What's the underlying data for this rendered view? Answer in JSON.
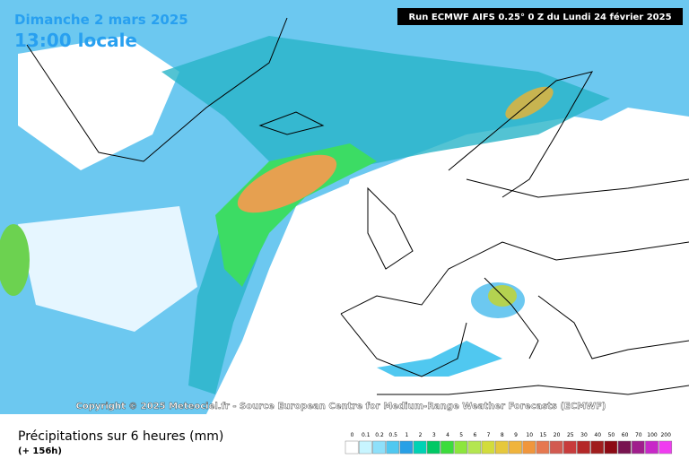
{
  "header": {
    "date": "Dimanche 2 mars 2025",
    "time": "13:00 locale",
    "run": "Run ECMWF AIFS 0.25° 0 Z du Lundi 24 février 2025"
  },
  "copyright": "Copyright © 2025 Meteociel.fr - Source European Centre for Medium-Range Weather Forecasts (ECMWF)",
  "footer": {
    "title": "Précipitations sur 6 heures (mm)",
    "lead": "(+ 156h)"
  },
  "legend": {
    "labels": [
      "0",
      "0.1",
      "0.2",
      "0.5",
      "1",
      "2",
      "3",
      "4",
      "5",
      "6",
      "7",
      "8",
      "9",
      "10",
      "15",
      "20",
      "25",
      "30",
      "40",
      "50",
      "60",
      "70",
      "100",
      "200"
    ],
    "colors": [
      "#ffffff",
      "#c8f5ff",
      "#8ee0fa",
      "#50c8f0",
      "#28a0e6",
      "#00d2b4",
      "#00c864",
      "#3cdc3c",
      "#8ce63c",
      "#b4e650",
      "#d2dc3c",
      "#e6c83c",
      "#f0b43c",
      "#f0963c",
      "#e67850",
      "#d25a50",
      "#c83c3c",
      "#b42828",
      "#a01e1e",
      "#8c0a14",
      "#781450",
      "#a01e8c",
      "#c828c8",
      "#f03cf0"
    ]
  }
}
